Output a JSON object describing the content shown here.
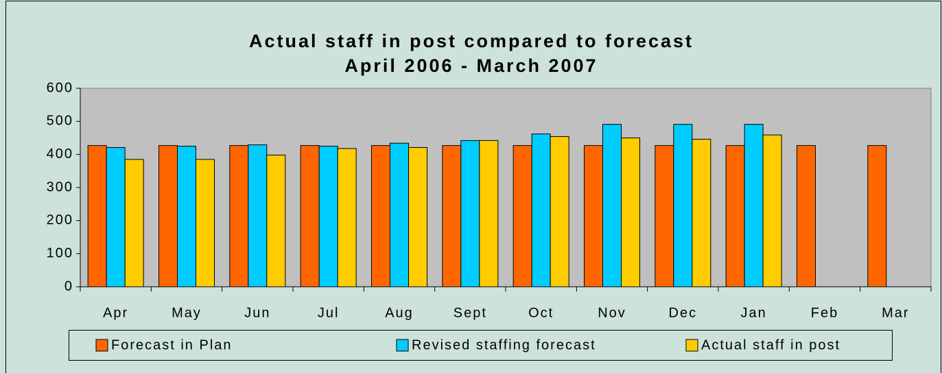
{
  "chart_data": {
    "type": "bar",
    "title": "Actual staff in post compared to forecast",
    "subtitle": "April 2006 - March 2007",
    "categories": [
      "Apr",
      "May",
      "Jun",
      "Jul",
      "Aug",
      "Sept",
      "Oct",
      "Nov",
      "Dec",
      "Jan",
      "Feb",
      "Mar"
    ],
    "series": [
      {
        "name": "Forecast in Plan",
        "color": "#ff6600",
        "values": [
          427,
          427,
          427,
          427,
          427,
          427,
          427,
          427,
          427,
          427,
          427,
          427
        ]
      },
      {
        "name": "Revised staffing forecast",
        "color": "#00ccff",
        "values": [
          421,
          425,
          429,
          425,
          434,
          442,
          462,
          491,
          491,
          491,
          null,
          null
        ]
      },
      {
        "name": "Actual staff in post",
        "color": "#ffcc00",
        "values": [
          385,
          385,
          398,
          418,
          421,
          442,
          454,
          450,
          446,
          459,
          null,
          null
        ]
      }
    ],
    "ylim": [
      0,
      600
    ],
    "yticks": [
      0,
      100,
      200,
      300,
      400,
      500,
      600
    ],
    "grid": false,
    "legend": "bottom"
  }
}
